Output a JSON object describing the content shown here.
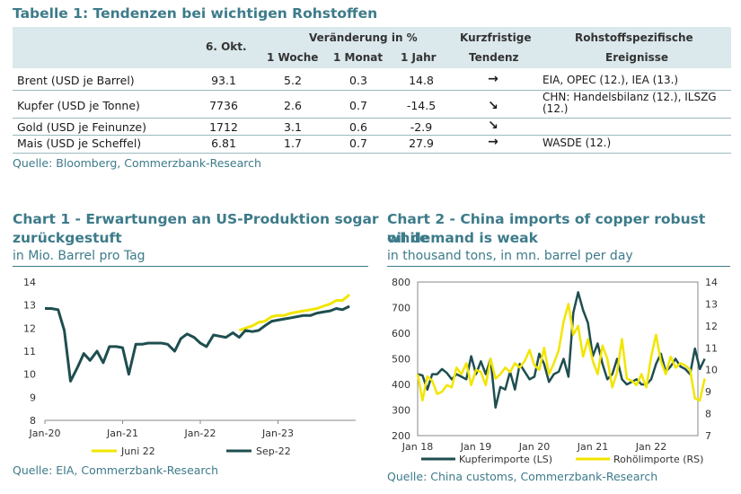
{
  "table": {
    "title": "Tabelle 1: Tendenzen bei wichtigen Rohstoffen",
    "headers": {
      "date": "6. Okt.",
      "change_group": "Veränderung in %",
      "week": "1 Woche",
      "month": "1 Monat",
      "year": "1 Jahr",
      "trend_line1": "Kurzfristige",
      "trend_line2": "Tendenz",
      "events_line1": "Rohstoffspezifische",
      "events_line2": "Ereignisse"
    },
    "rows": [
      {
        "name": "Brent (USD je Barrel)",
        "price": "93.1",
        "week": "5.2",
        "month": "0.3",
        "year": "14.8",
        "trend": "→",
        "events": "EIA, OPEC (12.), IEA (13.)"
      },
      {
        "name": "Kupfer (USD je Tonne)",
        "price": "7736",
        "week": "2.6",
        "month": "0.7",
        "year": "-14.5",
        "trend": "↘",
        "events": "CHN: Handelsbilanz (12.), ILSZG (12.)"
      },
      {
        "name": "Gold (USD je Feinunze)",
        "price": "1712",
        "week": "3.1",
        "month": "0.6",
        "year": "-2.9",
        "trend": "↘",
        "events": ""
      },
      {
        "name": "Mais (USD je Scheffel)",
        "price": "6.81",
        "week": "1.7",
        "month": "0.7",
        "year": "27.9",
        "trend": "→",
        "events": "WASDE (12.)"
      }
    ],
    "source": "Quelle: Bloomberg, Commerzbank-Research"
  },
  "chart1": {
    "title_line1": "Chart 1 - Erwartungen an US-Produktion sogar",
    "title_line2": "zurückgestuft",
    "subtitle": "in Mio. Barrel pro Tag",
    "source": "Quelle: EIA, Commerzbank-Research"
  },
  "chart2": {
    "title_line1": "Chart 2 - China imports of copper robust while",
    "title_line2": "oil demand is weak",
    "subtitle": "in thousand tons, in mn. barrel per day",
    "source": "Quelle: China customs, Commerzbank-Research"
  },
  "chart_data": [
    {
      "type": "line",
      "title": "Chart 1 - Erwartungen an US-Produktion sogar zurückgestuft",
      "ylabel": "in Mio. Barrel pro Tag",
      "ylim": [
        8,
        14
      ],
      "yticks": [
        "8",
        "9",
        "10",
        "11",
        "12",
        "13",
        "14"
      ],
      "xlim": [
        2020.0,
        2024.0
      ],
      "xticks": [
        {
          "label": "Jan-20",
          "x": 2020.0
        },
        {
          "label": "Jan-21",
          "x": 2021.0
        },
        {
          "label": "Jan-22",
          "x": 2022.0
        },
        {
          "label": "Jan-23",
          "x": 2023.0
        }
      ],
      "grid": false,
      "legend": "bottom",
      "colors": {
        "Juni 22": "#f2e500",
        "Sep-22": "#1f4e4f"
      },
      "series": [
        {
          "name": "Juni 22",
          "x": [
            2022.5,
            2022.58,
            2022.67,
            2022.75,
            2022.83,
            2022.92,
            2023.0,
            2023.08,
            2023.17,
            2023.25,
            2023.33,
            2023.42,
            2023.5,
            2023.58,
            2023.67,
            2023.75,
            2023.83,
            2023.92
          ],
          "values": [
            11.9,
            12.0,
            12.1,
            12.25,
            12.3,
            12.5,
            12.55,
            12.55,
            12.65,
            12.7,
            12.75,
            12.8,
            12.85,
            12.95,
            13.05,
            13.2,
            13.2,
            13.45
          ]
        },
        {
          "name": "Sep-22",
          "x": [
            2020.0,
            2020.08,
            2020.17,
            2020.25,
            2020.33,
            2020.42,
            2020.5,
            2020.58,
            2020.67,
            2020.75,
            2020.83,
            2020.92,
            2021.0,
            2021.08,
            2021.17,
            2021.25,
            2021.33,
            2021.42,
            2021.5,
            2021.58,
            2021.67,
            2021.75,
            2021.83,
            2021.92,
            2022.0,
            2022.08,
            2022.17,
            2022.25,
            2022.33,
            2022.42,
            2022.5,
            2022.58,
            2022.67,
            2022.75,
            2022.83,
            2022.92,
            2023.0,
            2023.08,
            2023.17,
            2023.25,
            2023.33,
            2023.42,
            2023.5,
            2023.58,
            2023.67,
            2023.75,
            2023.83,
            2023.92
          ],
          "values": [
            12.85,
            12.85,
            12.8,
            11.9,
            9.7,
            10.3,
            10.9,
            10.6,
            11.0,
            10.5,
            11.2,
            11.2,
            11.15,
            10.0,
            11.3,
            11.3,
            11.35,
            11.35,
            11.35,
            11.3,
            11.0,
            11.55,
            11.75,
            11.6,
            11.35,
            11.2,
            11.7,
            11.65,
            11.6,
            11.8,
            11.6,
            11.9,
            11.85,
            11.9,
            12.1,
            12.3,
            12.35,
            12.4,
            12.45,
            12.5,
            12.55,
            12.55,
            12.65,
            12.7,
            12.75,
            12.85,
            12.8,
            12.95
          ]
        }
      ]
    },
    {
      "type": "line",
      "title": "Chart 2 - China imports of copper robust while oil demand is weak",
      "ylabel": "in thousand tons, in mn. barrel per day",
      "ylim_left": [
        200,
        800
      ],
      "ylim_right": [
        7,
        14
      ],
      "yticks_left": [
        "200",
        "300",
        "400",
        "500",
        "600",
        "700",
        "800"
      ],
      "yticks_right": [
        "7",
        "8",
        "9",
        "10",
        "11",
        "12",
        "13",
        "14"
      ],
      "xlim": [
        2018.0,
        2022.8
      ],
      "xticks": [
        {
          "label": "Jan 18",
          "x": 2018.0
        },
        {
          "label": "Jan 19",
          "x": 2019.0
        },
        {
          "label": "Jan 20",
          "x": 2020.0
        },
        {
          "label": "Jan 21",
          "x": 2021.0
        },
        {
          "label": "Jan 22",
          "x": 2022.0
        }
      ],
      "grid": false,
      "legend": "bottom",
      "colors": {
        "Kupferimporte (LS)": "#1f4e4f",
        "Rohölimporte (RS)": "#f2e500"
      },
      "series": [
        {
          "name": "Kupferimporte (LS)",
          "axis": "left",
          "start": 2018.0,
          "step": 0.08333,
          "values": [
            440,
            435,
            380,
            440,
            440,
            460,
            445,
            420,
            440,
            430,
            420,
            510,
            440,
            490,
            440,
            500,
            310,
            390,
            380,
            450,
            380,
            480,
            450,
            420,
            430,
            520,
            480,
            410,
            440,
            450,
            500,
            430,
            680,
            760,
            690,
            640,
            510,
            560,
            480,
            420,
            440,
            500,
            420,
            400,
            410,
            420,
            400,
            400,
            420,
            480,
            520,
            450,
            470,
            500,
            470,
            460,
            440,
            540,
            460,
            500
          ]
        },
        {
          "name": "Rohölimporte (RS)",
          "axis": "right",
          "start": 2018.0,
          "step": 0.08333,
          "values": [
            9.8,
            8.6,
            9.7,
            9.5,
            8.9,
            9.0,
            9.3,
            9.2,
            10.1,
            9.8,
            10.3,
            9.3,
            10.0,
            9.9,
            9.3,
            10.5,
            9.6,
            9.8,
            10.1,
            9.9,
            10.3,
            10.1,
            10.4,
            10.9,
            10.2,
            10.0,
            11.0,
            9.8,
            10.3,
            10.9,
            12.2,
            13.0,
            11.6,
            12.0,
            10.6,
            11.4,
            10.4,
            9.8,
            11.1,
            10.5,
            9.2,
            9.9,
            11.4,
            9.6,
            9.5,
            9.3,
            9.8,
            9.2,
            10.6,
            11.6,
            10.4,
            9.8,
            10.6,
            10.1,
            10.3,
            10.2,
            10.0,
            8.7,
            8.6,
            9.6
          ]
        }
      ]
    }
  ]
}
